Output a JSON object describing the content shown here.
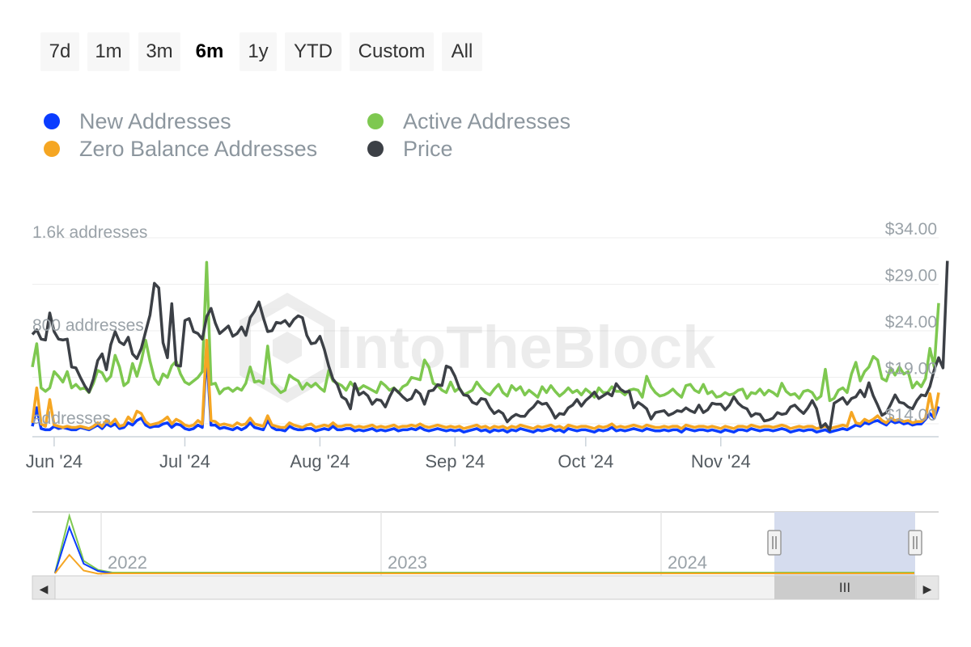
{
  "range_selector": {
    "buttons": [
      {
        "label": "7d",
        "active": false
      },
      {
        "label": "1m",
        "active": false
      },
      {
        "label": "3m",
        "active": false
      },
      {
        "label": "6m",
        "active": true
      },
      {
        "label": "1y",
        "active": false
      },
      {
        "label": "YTD",
        "active": false
      },
      {
        "label": "Custom",
        "active": false
      },
      {
        "label": "All",
        "active": false
      }
    ]
  },
  "legend": {
    "items": [
      {
        "label": "New Addresses",
        "color": "#0a3cff"
      },
      {
        "label": "Active Addresses",
        "color": "#7ec850"
      },
      {
        "label": "Zero Balance Addresses",
        "color": "#f5a623"
      },
      {
        "label": "Price",
        "color": "#3c4046"
      }
    ]
  },
  "watermark": "IntoTheBlock",
  "chart_data": {
    "type": "line",
    "x_ticks": [
      "Jun '24",
      "Jul '24",
      "Aug '24",
      "Sep '24",
      "Oct '24",
      "Nov '24"
    ],
    "y_left_ticks": [
      "addresses",
      "800 addresses",
      "1.6k addresses"
    ],
    "y_left_range": [
      0,
      1600
    ],
    "y_right_ticks": [
      "$14.00",
      "$19.00",
      "$24.00",
      "$29.00",
      "$34.00"
    ],
    "y_right_range": [
      14,
      34
    ],
    "grid": true,
    "legend_position": "top-left",
    "series": [
      {
        "name": "Active Addresses",
        "axis": "left",
        "color": "#7ec850",
        "values": [
          600,
          800,
          420,
          390,
          420,
          560,
          520,
          470,
          560,
          420,
          450,
          410,
          420,
          380,
          460,
          570,
          550,
          480,
          520,
          700,
          600,
          440,
          470,
          630,
          520,
          650,
          830,
          650,
          500,
          450,
          540,
          510,
          610,
          650,
          540,
          470,
          450,
          480,
          510,
          560,
          1500,
          450,
          460,
          370,
          410,
          420,
          390,
          420,
          400,
          460,
          600,
          470,
          480,
          460,
          780,
          460,
          420,
          380,
          400,
          530,
          500,
          480,
          410,
          460,
          430,
          460,
          420,
          390,
          570,
          480,
          460,
          440,
          400,
          470,
          420,
          410,
          440,
          420,
          400,
          380,
          470,
          440,
          400,
          420,
          380,
          430,
          450,
          510,
          500,
          490,
          660,
          600,
          460,
          440,
          400,
          380,
          470,
          390,
          420,
          360,
          380,
          400,
          470,
          420,
          380,
          360,
          410,
          450,
          380,
          350,
          440,
          400,
          430,
          360,
          400,
          370,
          340,
          430,
          380,
          440,
          390,
          350,
          380,
          420,
          380,
          400,
          360,
          410,
          380,
          340,
          420,
          380,
          380,
          430,
          390,
          390,
          360,
          400,
          410,
          400,
          340,
          520,
          430,
          380,
          350,
          360,
          380,
          410,
          370,
          340,
          440,
          450,
          400,
          380,
          450,
          370,
          390,
          340,
          350,
          380,
          360,
          370,
          400,
          410,
          330,
          380,
          370,
          410,
          360,
          400,
          380,
          350,
          460,
          390,
          360,
          370,
          330,
          390,
          400,
          380,
          320,
          350,
          580,
          310,
          330,
          400,
          420,
          380,
          540,
          640,
          480,
          560,
          600,
          690,
          660,
          500,
          480,
          590,
          530,
          600,
          540,
          560,
          420,
          470,
          430,
          500,
          760,
          600,
          1150
        ]
      },
      {
        "name": "New Addresses",
        "axis": "left",
        "color": "#0a3cff",
        "values": [
          90,
          250,
          70,
          60,
          60,
          90,
          70,
          80,
          70,
          60,
          60,
          80,
          70,
          60,
          80,
          100,
          70,
          110,
          90,
          110,
          70,
          80,
          120,
          100,
          140,
          160,
          100,
          80,
          90,
          90,
          110,
          120,
          80,
          110,
          100,
          70,
          60,
          70,
          100,
          80,
          720,
          100,
          100,
          70,
          80,
          70,
          60,
          80,
          60,
          80,
          120,
          80,
          70,
          60,
          140,
          80,
          60,
          60,
          50,
          90,
          70,
          60,
          60,
          70,
          70,
          50,
          60,
          70,
          60,
          90,
          60,
          60,
          70,
          70,
          50,
          60,
          50,
          60,
          70,
          50,
          60,
          50,
          60,
          70,
          50,
          60,
          60,
          70,
          60,
          80,
          60,
          50,
          60,
          70,
          60,
          50,
          60,
          50,
          60,
          40,
          50,
          60,
          70,
          50,
          60,
          40,
          60,
          50,
          60,
          40,
          60,
          50,
          70,
          60,
          50,
          40,
          60,
          50,
          60,
          70,
          50,
          60,
          40,
          70,
          60,
          50,
          60,
          60,
          50,
          40,
          60,
          50,
          60,
          80,
          50,
          60,
          50,
          60,
          70,
          60,
          50,
          70,
          60,
          50,
          50,
          60,
          50,
          60,
          60,
          40,
          70,
          60,
          50,
          60,
          60,
          50,
          60,
          50,
          40,
          60,
          50,
          40,
          60,
          60,
          50,
          70,
          60,
          50,
          60,
          60,
          50,
          60,
          70,
          60,
          40,
          50,
          60,
          50,
          60,
          60,
          40,
          50,
          60,
          40,
          50,
          60,
          70,
          60,
          80,
          100,
          90,
          120,
          110,
          130,
          140,
          120,
          100,
          140,
          120,
          130,
          110,
          120,
          100,
          110,
          110,
          150,
          200,
          160,
          260
        ]
      },
      {
        "name": "Zero Balance Addresses",
        "axis": "left",
        "color": "#f5a623",
        "values": [
          120,
          420,
          110,
          90,
          320,
          100,
          90,
          80,
          90,
          80,
          80,
          90,
          80,
          70,
          90,
          120,
          90,
          140,
          110,
          150,
          90,
          100,
          170,
          130,
          220,
          200,
          130,
          100,
          110,
          120,
          140,
          170,
          110,
          150,
          130,
          100,
          90,
          100,
          140,
          110,
          830,
          140,
          130,
          100,
          110,
          100,
          90,
          120,
          100,
          110,
          160,
          110,
          100,
          90,
          180,
          100,
          90,
          80,
          80,
          120,
          100,
          90,
          80,
          100,
          110,
          80,
          90,
          100,
          90,
          120,
          90,
          90,
          100,
          100,
          80,
          90,
          80,
          90,
          100,
          80,
          90,
          80,
          90,
          100,
          80,
          90,
          90,
          100,
          90,
          110,
          90,
          80,
          90,
          100,
          90,
          80,
          90,
          80,
          90,
          70,
          80,
          90,
          100,
          80,
          90,
          70,
          90,
          80,
          90,
          70,
          90,
          80,
          100,
          90,
          80,
          70,
          90,
          80,
          90,
          100,
          80,
          90,
          70,
          100,
          90,
          80,
          90,
          90,
          80,
          70,
          90,
          80,
          90,
          110,
          80,
          90,
          80,
          90,
          100,
          90,
          80,
          100,
          90,
          80,
          80,
          90,
          80,
          90,
          90,
          70,
          100,
          90,
          80,
          90,
          90,
          80,
          90,
          80,
          70,
          90,
          80,
          70,
          90,
          90,
          80,
          100,
          90,
          80,
          90,
          90,
          80,
          90,
          100,
          90,
          70,
          80,
          90,
          80,
          90,
          90,
          70,
          80,
          90,
          70,
          80,
          90,
          100,
          90,
          210,
          120,
          110,
          150,
          130,
          150,
          180,
          140,
          120,
          160,
          140,
          150,
          130,
          140,
          120,
          130,
          130,
          160,
          370,
          170,
          380
        ]
      },
      {
        "name": "Price",
        "axis": "right",
        "color": "#3c4046",
        "values": [
          25,
          25.5,
          24.5,
          24.4,
          27.3,
          25.3,
          24.5,
          24.4,
          24.5,
          21.5,
          21.4,
          20.4,
          19.5,
          18.8,
          20.2,
          22.2,
          22.9,
          21.2,
          23.9,
          25.3,
          24.2,
          23.9,
          24.7,
          22.9,
          22.4,
          23.5,
          25.3,
          27.1,
          30.5,
          30,
          24.1,
          22.5,
          28.3,
          21.7,
          21.6,
          26.5,
          26.7,
          25.3,
          25.1,
          24.5,
          26.9,
          27.8,
          26.2,
          25.1,
          25.5,
          25.9,
          24.8,
          25.1,
          25.8,
          24.9,
          26.8,
          27.5,
          28.5,
          26.8,
          25.3,
          25.4,
          26.3,
          26.2,
          26.5,
          25.9,
          26.6,
          27,
          26.8,
          24.9,
          24,
          24.1,
          24.8,
          23.4,
          21.6,
          20.2,
          19.6,
          18.3,
          18,
          17,
          19.7,
          18.5,
          18.8,
          18.4,
          17.5,
          18,
          17.9,
          17.2,
          18.3,
          19.2,
          18.8,
          18.3,
          17.9,
          18.1,
          19,
          18.6,
          17.5,
          18.9,
          19,
          19.6,
          19.5,
          21.6,
          21.4,
          20.5,
          19.2,
          18.5,
          18.4,
          17.7,
          17.5,
          18.1,
          18,
          17.1,
          16.5,
          16.8,
          16.5,
          15.6,
          16.1,
          16.4,
          16.2,
          16.2,
          16.8,
          17.2,
          17.8,
          17.5,
          17.6,
          16.9,
          16,
          16.5,
          16.4,
          17.1,
          17.4,
          18,
          17.3,
          17.9,
          18.3,
          18.8,
          18.1,
          18.4,
          18.7,
          18.4,
          19.7,
          19.1,
          18.8,
          18.9,
          17.1,
          17.7,
          17.4,
          17,
          15.9,
          16.6,
          16.7,
          16.8,
          16.3,
          16.5,
          16.8,
          16.7,
          17.1,
          16.8,
          16.6,
          17.4,
          16.6,
          16.9,
          17.6,
          17.5,
          17.5,
          16.9,
          17.4,
          18.3,
          17.6,
          17.2,
          17,
          16.2,
          16.5,
          16.4,
          15.7,
          15.8,
          16,
          16.6,
          16.4,
          16.5,
          17.2,
          17.4,
          16.9,
          16.5,
          17.1,
          17.9,
          17,
          15,
          15.4,
          14.7,
          17.6,
          17.9,
          18.2,
          17.5,
          18.1,
          18.3,
          19,
          18.3,
          19.8,
          18.4,
          17.4,
          16.3,
          16.6,
          17.5,
          18.5,
          17.7,
          17.6,
          17.2,
          17,
          17.9,
          18.5,
          18.4,
          19.4,
          21.2,
          22.5,
          21.4,
          32.9
        ]
      }
    ]
  },
  "navigator": {
    "year_labels": [
      "2022",
      "2023",
      "2024"
    ],
    "scroll_grip": "III",
    "left_arrow": "◀",
    "right_arrow": "▶"
  }
}
